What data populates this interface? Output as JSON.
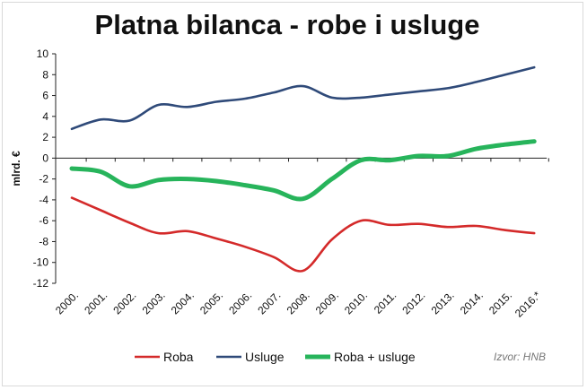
{
  "colors": {
    "roba": "#d42a2a",
    "usluge": "#2f4a79",
    "roba_usluge": "#27b45b"
  },
  "source_text": "Izvor: HNB",
  "chart_data": {
    "type": "line",
    "title": "Platna bilanca - robe i usluge",
    "xlabel": "",
    "ylabel": "mlrd. €",
    "ylim": [
      -12,
      10
    ],
    "yticks": [
      10,
      8,
      6,
      4,
      2,
      0,
      -2,
      -4,
      -6,
      -8,
      -10,
      -12
    ],
    "categories": [
      "2000.",
      "2001.",
      "2002.",
      "2003.",
      "2004.",
      "2005.",
      "2006.",
      "2007.",
      "2008.",
      "2009.",
      "2010.",
      "2011.",
      "2012.",
      "2013.",
      "2014.",
      "2015.",
      "2016.*"
    ],
    "legend_position": "bottom",
    "grid": false,
    "series": [
      {
        "name": "Roba",
        "values": [
          -3.8,
          -5.0,
          -6.2,
          -7.2,
          -7.0,
          -7.7,
          -8.5,
          -9.5,
          -10.8,
          -7.8,
          -6.0,
          -6.4,
          -6.3,
          -6.6,
          -6.5,
          -6.9,
          -7.2
        ]
      },
      {
        "name": "Usluge",
        "values": [
          2.8,
          3.7,
          3.6,
          5.1,
          4.9,
          5.4,
          5.7,
          6.3,
          6.9,
          5.8,
          5.8,
          6.1,
          6.4,
          6.7,
          7.3,
          8.0,
          8.7
        ]
      },
      {
        "name": "Roba + usluge",
        "values": [
          -1.0,
          -1.3,
          -2.7,
          -2.1,
          -2.0,
          -2.2,
          -2.6,
          -3.1,
          -3.9,
          -2.0,
          -0.2,
          -0.2,
          0.2,
          0.2,
          0.9,
          1.3,
          1.6
        ]
      }
    ]
  }
}
